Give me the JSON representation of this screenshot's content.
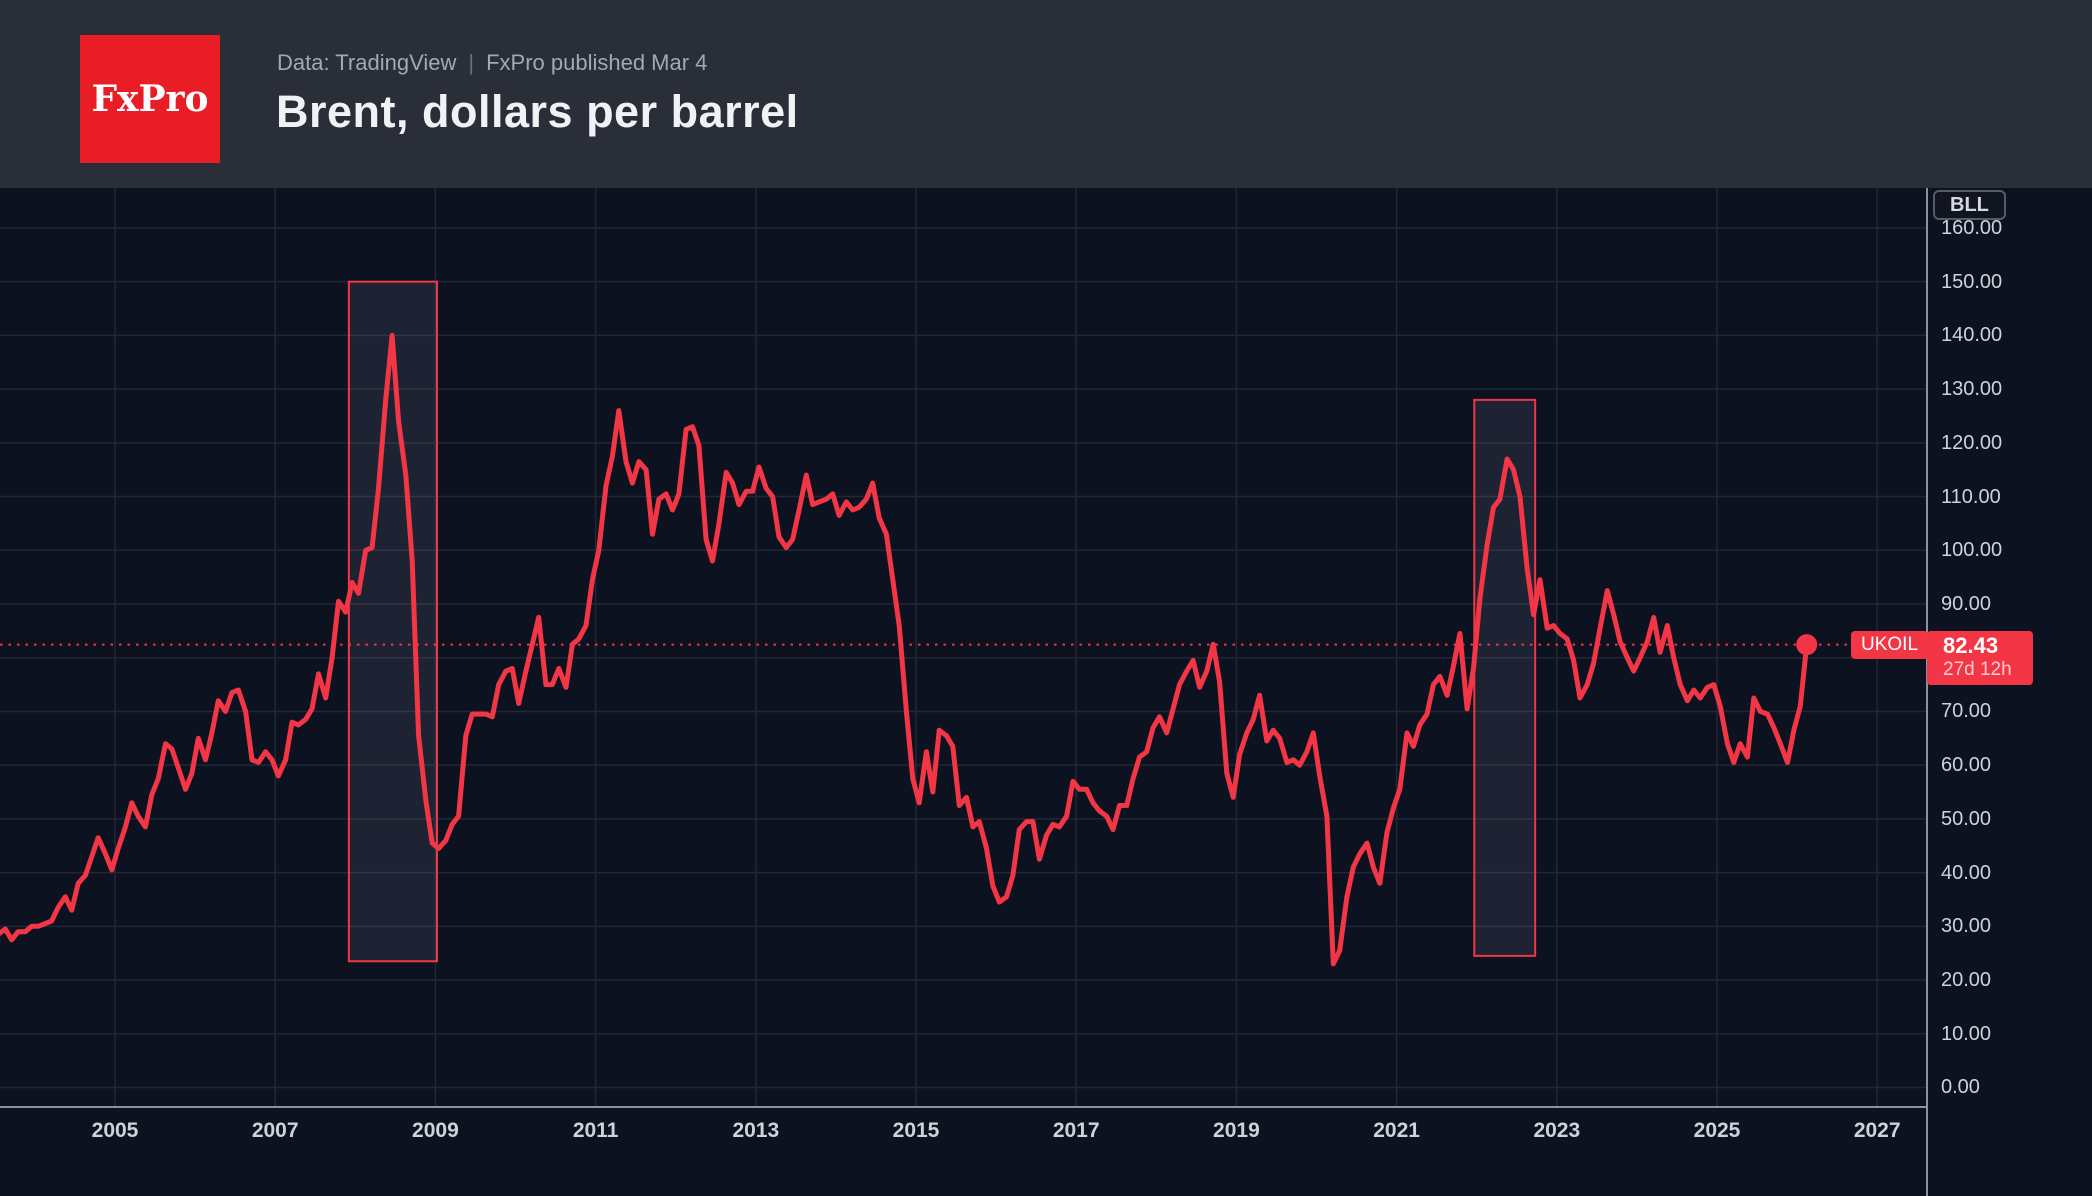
{
  "header": {
    "logo_text": "FxPro",
    "source_label": "Data: TradingView",
    "separator": "|",
    "published_label": "FxPro published Mar 4",
    "title": "Brent, dollars per barrel"
  },
  "axis": {
    "unit_badge": "BLL"
  },
  "price_tag": {
    "symbol": "UKOIL",
    "price": "82.43",
    "countdown": "27d 12h"
  },
  "colors": {
    "line_red": "#f23645",
    "header_bg": "#2a2e38",
    "chart_bg": "#0d1220",
    "grid": "#212734",
    "axis_line": "#8d919b",
    "tick_text": "#ced2da",
    "logo_red": "#e81d25",
    "box_fill": "rgba(205,216,240,0.09)",
    "box_stroke": "#f23645"
  },
  "chart_data": {
    "type": "line",
    "title": "Brent, dollars per barrel",
    "xlabel": "",
    "ylabel": "dollars per barrel",
    "x_axis": {
      "ticks": [
        2005,
        2007,
        2009,
        2011,
        2013,
        2015,
        2017,
        2019,
        2021,
        2023,
        2025,
        2027
      ],
      "min": 2003.5,
      "max": 2027.6,
      "grid": true
    },
    "y_axis": {
      "ticks": [
        0,
        10,
        20,
        30,
        40,
        50,
        60,
        70,
        80,
        90,
        100,
        110,
        120,
        130,
        140,
        150,
        160
      ],
      "min": 0,
      "max": 160,
      "tick_decimals": 2,
      "grid": true
    },
    "last_price": 82.43,
    "last_price_line": true,
    "legend_position": "none",
    "series": [
      {
        "name": "UKOIL",
        "color": "#f23645",
        "points": [
          [
            2003.54,
            28.5
          ],
          [
            2003.63,
            29.5
          ],
          [
            2003.71,
            27.5
          ],
          [
            2003.79,
            29
          ],
          [
            2003.88,
            29
          ],
          [
            2003.96,
            30
          ],
          [
            2004.04,
            30
          ],
          [
            2004.13,
            30.5
          ],
          [
            2004.21,
            31
          ],
          [
            2004.29,
            33.5
          ],
          [
            2004.38,
            35.5
          ],
          [
            2004.46,
            33
          ],
          [
            2004.54,
            38
          ],
          [
            2004.63,
            39.5
          ],
          [
            2004.71,
            43
          ],
          [
            2004.79,
            46.5
          ],
          [
            2004.88,
            43.5
          ],
          [
            2004.96,
            40.5
          ],
          [
            2005.04,
            44.5
          ],
          [
            2005.13,
            48.5
          ],
          [
            2005.21,
            53
          ],
          [
            2005.29,
            50.5
          ],
          [
            2005.38,
            48.5
          ],
          [
            2005.46,
            54.5
          ],
          [
            2005.54,
            57.5
          ],
          [
            2005.63,
            64
          ],
          [
            2005.71,
            63
          ],
          [
            2005.79,
            59.5
          ],
          [
            2005.88,
            55.5
          ],
          [
            2005.96,
            58.5
          ],
          [
            2006.04,
            65
          ],
          [
            2006.13,
            61
          ],
          [
            2006.21,
            66
          ],
          [
            2006.29,
            72
          ],
          [
            2006.38,
            70
          ],
          [
            2006.46,
            73.5
          ],
          [
            2006.54,
            74
          ],
          [
            2006.63,
            70
          ],
          [
            2006.71,
            61
          ],
          [
            2006.79,
            60.5
          ],
          [
            2006.88,
            62.5
          ],
          [
            2006.96,
            61
          ],
          [
            2007.04,
            58
          ],
          [
            2007.13,
            61
          ],
          [
            2007.21,
            68
          ],
          [
            2007.29,
            67.5
          ],
          [
            2007.38,
            68.5
          ],
          [
            2007.46,
            70.5
          ],
          [
            2007.54,
            77
          ],
          [
            2007.63,
            72.5
          ],
          [
            2007.71,
            80
          ],
          [
            2007.79,
            90.5
          ],
          [
            2007.88,
            88.5
          ],
          [
            2007.96,
            94
          ],
          [
            2008.04,
            92
          ],
          [
            2008.13,
            100
          ],
          [
            2008.21,
            100.5
          ],
          [
            2008.29,
            111.5
          ],
          [
            2008.38,
            128
          ],
          [
            2008.46,
            140
          ],
          [
            2008.54,
            124
          ],
          [
            2008.63,
            114
          ],
          [
            2008.71,
            98
          ],
          [
            2008.79,
            65.5
          ],
          [
            2008.88,
            53.5
          ],
          [
            2008.96,
            45.5
          ],
          [
            2009.04,
            44.5
          ],
          [
            2009.13,
            46
          ],
          [
            2009.21,
            49
          ],
          [
            2009.29,
            50.5
          ],
          [
            2009.38,
            65.5
          ],
          [
            2009.46,
            69.5
          ],
          [
            2009.54,
            69.5
          ],
          [
            2009.63,
            69.5
          ],
          [
            2009.71,
            69
          ],
          [
            2009.79,
            75
          ],
          [
            2009.88,
            77.5
          ],
          [
            2009.96,
            78
          ],
          [
            2010.04,
            71.5
          ],
          [
            2010.13,
            77.5
          ],
          [
            2010.21,
            82.5
          ],
          [
            2010.29,
            87.5
          ],
          [
            2010.38,
            75
          ],
          [
            2010.46,
            75
          ],
          [
            2010.54,
            78
          ],
          [
            2010.63,
            74.5
          ],
          [
            2010.71,
            82.5
          ],
          [
            2010.79,
            83.5
          ],
          [
            2010.88,
            86
          ],
          [
            2010.96,
            94.5
          ],
          [
            2011.04,
            100
          ],
          [
            2011.13,
            112
          ],
          [
            2011.21,
            117.5
          ],
          [
            2011.29,
            126
          ],
          [
            2011.38,
            116.5
          ],
          [
            2011.46,
            112.5
          ],
          [
            2011.54,
            116.5
          ],
          [
            2011.63,
            115
          ],
          [
            2011.71,
            103
          ],
          [
            2011.79,
            109.5
          ],
          [
            2011.88,
            110.5
          ],
          [
            2011.96,
            107.5
          ],
          [
            2012.04,
            110.5
          ],
          [
            2012.13,
            122.5
          ],
          [
            2012.21,
            123
          ],
          [
            2012.29,
            119.5
          ],
          [
            2012.38,
            102
          ],
          [
            2012.46,
            98
          ],
          [
            2012.54,
            105
          ],
          [
            2012.63,
            114.5
          ],
          [
            2012.71,
            112.5
          ],
          [
            2012.79,
            108.5
          ],
          [
            2012.88,
            111
          ],
          [
            2012.96,
            111
          ],
          [
            2013.04,
            115.5
          ],
          [
            2013.13,
            111.5
          ],
          [
            2013.21,
            110
          ],
          [
            2013.29,
            102.5
          ],
          [
            2013.38,
            100.5
          ],
          [
            2013.46,
            102
          ],
          [
            2013.54,
            107.5
          ],
          [
            2013.63,
            114
          ],
          [
            2013.71,
            108.5
          ],
          [
            2013.79,
            109
          ],
          [
            2013.88,
            109.5
          ],
          [
            2013.96,
            110.5
          ],
          [
            2014.04,
            106.5
          ],
          [
            2014.13,
            109
          ],
          [
            2014.21,
            107.5
          ],
          [
            2014.29,
            108
          ],
          [
            2014.38,
            109.5
          ],
          [
            2014.46,
            112.5
          ],
          [
            2014.54,
            106
          ],
          [
            2014.63,
            103
          ],
          [
            2014.71,
            94.5
          ],
          [
            2014.79,
            86
          ],
          [
            2014.88,
            70
          ],
          [
            2014.96,
            57.5
          ],
          [
            2015.04,
            53
          ],
          [
            2015.13,
            62.5
          ],
          [
            2015.21,
            55
          ],
          [
            2015.29,
            66.5
          ],
          [
            2015.38,
            65.5
          ],
          [
            2015.46,
            63.5
          ],
          [
            2015.54,
            52.5
          ],
          [
            2015.63,
            54
          ],
          [
            2015.71,
            48.5
          ],
          [
            2015.79,
            49.5
          ],
          [
            2015.88,
            44.5
          ],
          [
            2015.96,
            37.5
          ],
          [
            2016.04,
            34.5
          ],
          [
            2016.13,
            35.5
          ],
          [
            2016.21,
            39.5
          ],
          [
            2016.29,
            48
          ],
          [
            2016.38,
            49.5
          ],
          [
            2016.46,
            49.5
          ],
          [
            2016.54,
            42.5
          ],
          [
            2016.63,
            47
          ],
          [
            2016.71,
            49
          ],
          [
            2016.79,
            48.5
          ],
          [
            2016.88,
            50.5
          ],
          [
            2016.96,
            57
          ],
          [
            2017.04,
            55.5
          ],
          [
            2017.13,
            55.5
          ],
          [
            2017.21,
            53
          ],
          [
            2017.29,
            51.5
          ],
          [
            2017.38,
            50.5
          ],
          [
            2017.46,
            48
          ],
          [
            2017.54,
            52.5
          ],
          [
            2017.63,
            52.5
          ],
          [
            2017.71,
            57.5
          ],
          [
            2017.79,
            61.5
          ],
          [
            2017.88,
            62.5
          ],
          [
            2017.96,
            67
          ],
          [
            2018.04,
            69
          ],
          [
            2018.13,
            66
          ],
          [
            2018.21,
            70.5
          ],
          [
            2018.29,
            75
          ],
          [
            2018.38,
            77.5
          ],
          [
            2018.46,
            79.5
          ],
          [
            2018.54,
            74.5
          ],
          [
            2018.63,
            77.5
          ],
          [
            2018.71,
            82.5
          ],
          [
            2018.79,
            75.5
          ],
          [
            2018.88,
            58.5
          ],
          [
            2018.96,
            54
          ],
          [
            2019.04,
            62
          ],
          [
            2019.13,
            66
          ],
          [
            2019.21,
            68.5
          ],
          [
            2019.29,
            73
          ],
          [
            2019.38,
            64.5
          ],
          [
            2019.46,
            66.5
          ],
          [
            2019.54,
            65
          ],
          [
            2019.63,
            60.5
          ],
          [
            2019.71,
            61
          ],
          [
            2019.79,
            60
          ],
          [
            2019.88,
            62.5
          ],
          [
            2019.96,
            66
          ],
          [
            2020.04,
            58
          ],
          [
            2020.13,
            50.5
          ],
          [
            2020.21,
            23
          ],
          [
            2020.29,
            25.5
          ],
          [
            2020.38,
            35.5
          ],
          [
            2020.46,
            41
          ],
          [
            2020.54,
            43.5
          ],
          [
            2020.63,
            45.5
          ],
          [
            2020.71,
            41
          ],
          [
            2020.79,
            38
          ],
          [
            2020.88,
            47.5
          ],
          [
            2020.96,
            52
          ],
          [
            2021.04,
            55.5
          ],
          [
            2021.13,
            66
          ],
          [
            2021.21,
            63.5
          ],
          [
            2021.29,
            67.5
          ],
          [
            2021.38,
            69.5
          ],
          [
            2021.46,
            75
          ],
          [
            2021.54,
            76.5
          ],
          [
            2021.63,
            73
          ],
          [
            2021.71,
            78.5
          ],
          [
            2021.79,
            84.5
          ],
          [
            2021.88,
            70.5
          ],
          [
            2021.96,
            78
          ],
          [
            2022.04,
            91
          ],
          [
            2022.13,
            101
          ],
          [
            2022.21,
            108
          ],
          [
            2022.29,
            109.5
          ],
          [
            2022.38,
            117
          ],
          [
            2022.46,
            115
          ],
          [
            2022.54,
            110
          ],
          [
            2022.63,
            96.5
          ],
          [
            2022.71,
            88
          ],
          [
            2022.79,
            94.5
          ],
          [
            2022.88,
            85.5
          ],
          [
            2022.96,
            86
          ],
          [
            2023.04,
            84.5
          ],
          [
            2023.13,
            83.5
          ],
          [
            2023.21,
            79.5
          ],
          [
            2023.29,
            72.5
          ],
          [
            2023.38,
            75
          ],
          [
            2023.46,
            79
          ],
          [
            2023.54,
            85.5
          ],
          [
            2023.63,
            92.5
          ],
          [
            2023.71,
            88
          ],
          [
            2023.79,
            83
          ],
          [
            2023.88,
            80
          ],
          [
            2023.96,
            77.5
          ],
          [
            2024.04,
            80
          ],
          [
            2024.13,
            83
          ],
          [
            2024.21,
            87.5
          ],
          [
            2024.29,
            81
          ],
          [
            2024.38,
            86
          ],
          [
            2024.46,
            80
          ],
          [
            2024.54,
            75
          ],
          [
            2024.63,
            72
          ],
          [
            2024.71,
            74
          ],
          [
            2024.79,
            72.5
          ],
          [
            2024.88,
            74.5
          ],
          [
            2024.96,
            75
          ],
          [
            2025.04,
            71
          ],
          [
            2025.13,
            64
          ],
          [
            2025.21,
            60.5
          ],
          [
            2025.29,
            64
          ],
          [
            2025.38,
            61.5
          ],
          [
            2025.46,
            72.5
          ],
          [
            2025.54,
            70
          ],
          [
            2025.63,
            69.5
          ],
          [
            2025.71,
            67
          ],
          [
            2025.79,
            64
          ],
          [
            2025.88,
            60.5
          ],
          [
            2025.96,
            66.5
          ],
          [
            2026.04,
            71
          ],
          [
            2026.12,
            82.43
          ]
        ]
      }
    ],
    "annotations": {
      "boxes": [
        {
          "year_start": 2007.92,
          "year_end": 2009.02,
          "price_top": 150,
          "price_bottom": 23.5
        },
        {
          "year_start": 2021.97,
          "year_end": 2022.73,
          "price_top": 128,
          "price_bottom": 24.5
        }
      ]
    }
  }
}
